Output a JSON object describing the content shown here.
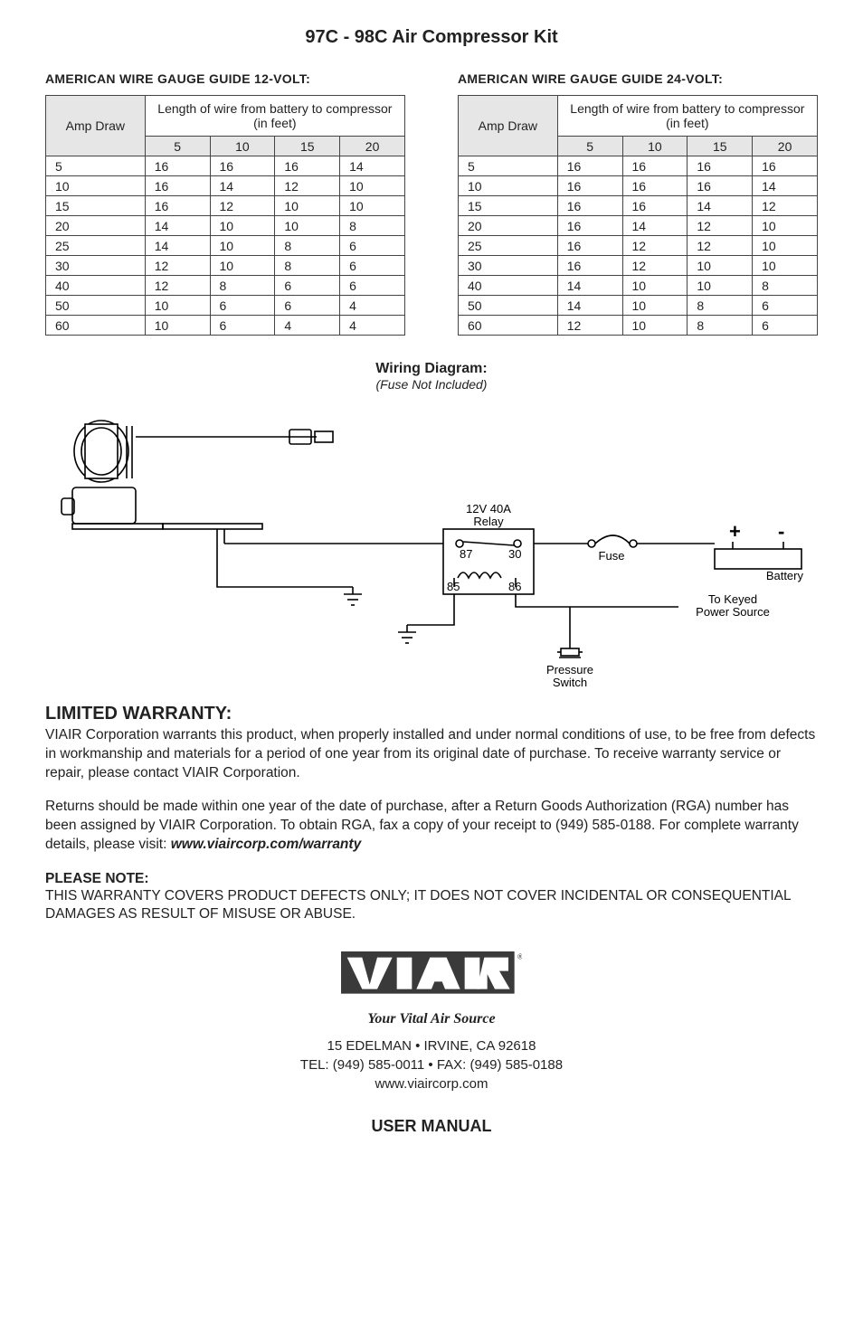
{
  "page": {
    "title": "97C - 98C Air Compressor Kit",
    "table12": {
      "heading": "AMERICAN WIRE GAUGE GUIDE 12-VOLT:",
      "amp_label": "Amp Draw",
      "length_label": "Length of wire from battery to compressor (in feet)",
      "lengths": [
        "5",
        "10",
        "15",
        "20"
      ],
      "rows": [
        {
          "amp": "5",
          "g": [
            "16",
            "16",
            "16",
            "14"
          ]
        },
        {
          "amp": "10",
          "g": [
            "16",
            "14",
            "12",
            "10"
          ]
        },
        {
          "amp": "15",
          "g": [
            "16",
            "12",
            "10",
            "10"
          ]
        },
        {
          "amp": "20",
          "g": [
            "14",
            "10",
            "10",
            "8"
          ]
        },
        {
          "amp": "25",
          "g": [
            "14",
            "10",
            "8",
            "6"
          ]
        },
        {
          "amp": "30",
          "g": [
            "12",
            "10",
            "8",
            "6"
          ]
        },
        {
          "amp": "40",
          "g": [
            "12",
            "8",
            "6",
            "6"
          ]
        },
        {
          "amp": "50",
          "g": [
            "10",
            "6",
            "6",
            "4"
          ]
        },
        {
          "amp": "60",
          "g": [
            "10",
            "6",
            "4",
            "4"
          ]
        }
      ]
    },
    "table24": {
      "heading": "AMERICAN WIRE GAUGE GUIDE 24-VOLT:",
      "amp_label": "Amp Draw",
      "length_label": "Length of wire from battery to compressor (in feet)",
      "lengths": [
        "5",
        "10",
        "15",
        "20"
      ],
      "rows": [
        {
          "amp": "5",
          "g": [
            "16",
            "16",
            "16",
            "16"
          ]
        },
        {
          "amp": "10",
          "g": [
            "16",
            "16",
            "16",
            "14"
          ]
        },
        {
          "amp": "15",
          "g": [
            "16",
            "16",
            "14",
            "12"
          ]
        },
        {
          "amp": "20",
          "g": [
            "16",
            "14",
            "12",
            "10"
          ]
        },
        {
          "amp": "25",
          "g": [
            "16",
            "12",
            "12",
            "10"
          ]
        },
        {
          "amp": "30",
          "g": [
            "16",
            "12",
            "10",
            "10"
          ]
        },
        {
          "amp": "40",
          "g": [
            "14",
            "10",
            "10",
            "8"
          ]
        },
        {
          "amp": "50",
          "g": [
            "14",
            "10",
            "8",
            "6"
          ]
        },
        {
          "amp": "60",
          "g": [
            "12",
            "10",
            "8",
            "6"
          ]
        }
      ]
    },
    "wiring": {
      "title": "Wiring Diagram:",
      "sub": "(Fuse Not Included)",
      "labels": {
        "relay_top": "12V  40A",
        "relay_bot": "Relay",
        "pin87": "87",
        "pin30": "30",
        "pin85": "85",
        "pin86": "86",
        "fuse": "Fuse",
        "battery": "Battery",
        "plus": "+",
        "minus": "-",
        "keyed1": "To Keyed",
        "keyed2": "Power Source",
        "pswitch1": "Pressure",
        "pswitch2": "Switch"
      }
    },
    "warranty": {
      "heading": "LIMITED WARRANTY:",
      "p1": "VIAIR Corporation warrants this product, when properly installed and under normal conditions of use, to be free from defects in workmanship and materials for a period of one year from its original date of purchase. To receive warranty service or repair, please contact VIAIR Corporation.",
      "p2a": "Returns should be made within one year of the date of purchase, after a Return Goods Authorization (RGA) number has been assigned by VIAIR Corporation. To obtain RGA, fax a copy of your receipt to (949) 585-0188. For complete warranty details, please visit: ",
      "p2b": "www.viaircorp.com/warranty",
      "note_h": "PLEASE NOTE:",
      "note": "THIS WARRANTY COVERS PRODUCT DEFECTS ONLY; IT DOES NOT COVER INCIDENTAL OR CONSEQUENTIAL DAMAGES AS RESULT OF MISUSE OR ABUSE."
    },
    "footer": {
      "brand": "VIAIR",
      "tagline": "Your Vital Air Source",
      "addr1": "15 EDELMAN • IRVINE, CA 92618",
      "addr2": "TEL: (949) 585-0011 • FAX: (949) 585-0188",
      "addr3": "www.viaircorp.com",
      "manual": "USER MANUAL"
    },
    "style": {
      "table_header_bg": "#e6e6e6",
      "border_color": "#444444",
      "body_font_size": 15.5,
      "title_font_size": 20
    }
  }
}
